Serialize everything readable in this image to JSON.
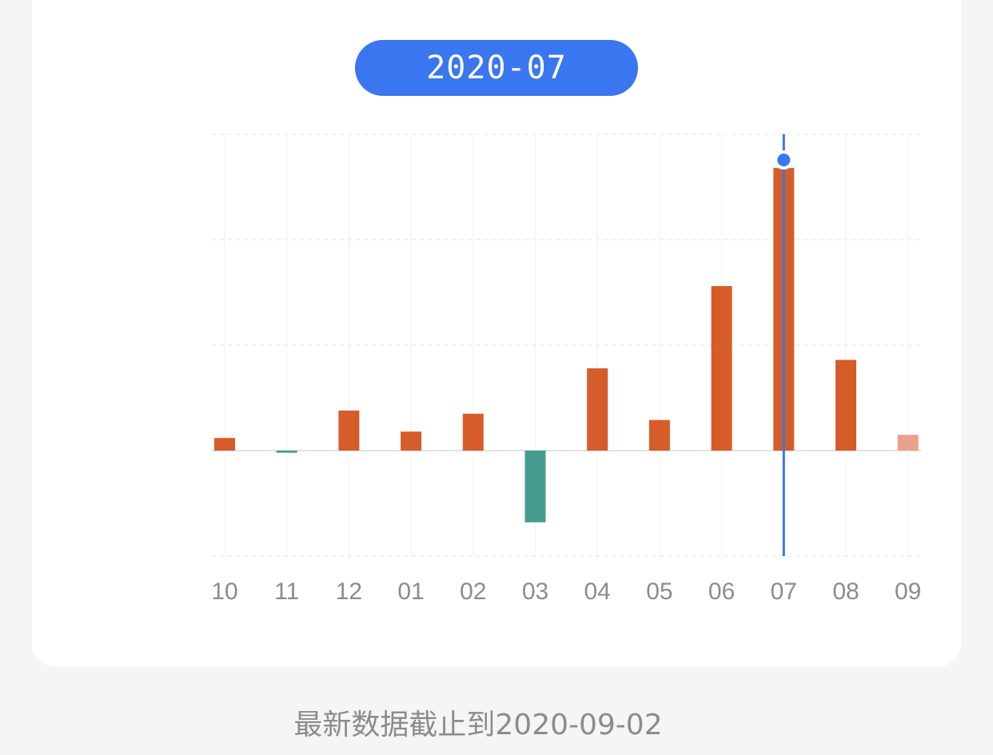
{
  "header": {
    "selected_month": "2020-07"
  },
  "footer": {
    "note": "最新数据截止到2020-09-02"
  },
  "colors": {
    "positive": "#d65c2a",
    "negative": "#479c90",
    "current": "#eaa28c",
    "highlight": "#3a76f0",
    "tick": "#8c8c8c",
    "grid": "#e6e6e6"
  },
  "chart_data": {
    "type": "bar",
    "categories": [
      "10",
      "11",
      "12",
      "01",
      "02",
      "03",
      "04",
      "05",
      "06",
      "07",
      "08",
      "09"
    ],
    "values": [
      0.6,
      -0.1,
      1.9,
      0.9,
      1.75,
      -3.4,
      3.9,
      1.45,
      7.8,
      13.4,
      4.3,
      0.75
    ],
    "ylim": [
      -5,
      15
    ],
    "yticks": [
      -5,
      0,
      5,
      10,
      15
    ],
    "grid": true,
    "highlighted_category": "07",
    "title": "",
    "xlabel": "",
    "ylabel": ""
  }
}
